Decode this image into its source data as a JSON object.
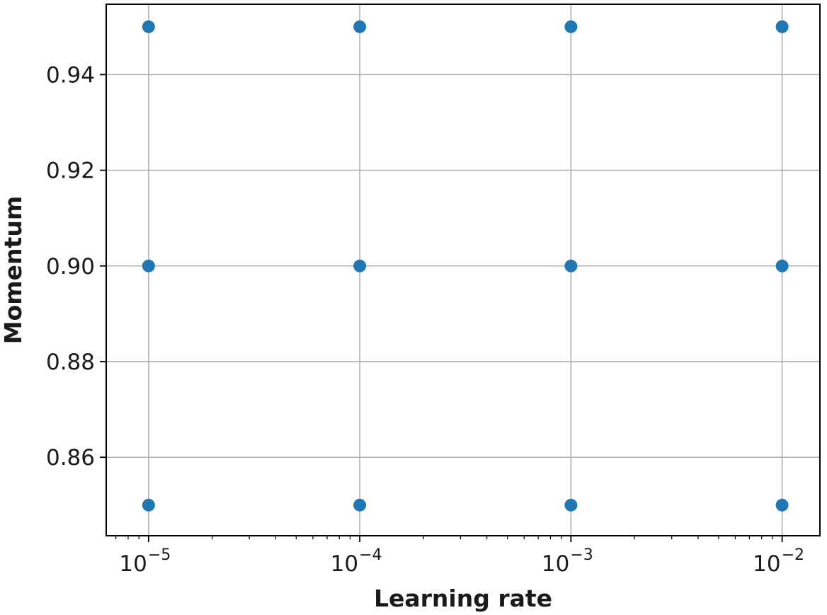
{
  "chart_data": {
    "type": "scatter",
    "xlabel": "Learning rate",
    "ylabel": "Momentum",
    "xscale": "log",
    "xlim": [
      6.3e-06,
      0.0151
    ],
    "ylim": [
      0.8436,
      0.9547
    ],
    "grid": true,
    "x_ticks": [
      {
        "value": 1e-05,
        "base": "10",
        "exp": "−5"
      },
      {
        "value": 0.0001,
        "base": "10",
        "exp": "−4"
      },
      {
        "value": 0.001,
        "base": "10",
        "exp": "−3"
      },
      {
        "value": 0.01,
        "base": "10",
        "exp": "−2"
      }
    ],
    "y_ticks": [
      {
        "value": 0.86,
        "label": "0.86"
      },
      {
        "value": 0.88,
        "label": "0.88"
      },
      {
        "value": 0.9,
        "label": "0.90"
      },
      {
        "value": 0.92,
        "label": "0.92"
      },
      {
        "value": 0.94,
        "label": "0.94"
      }
    ],
    "series": [
      {
        "color": "#1f77b4",
        "points": [
          {
            "x": 1e-05,
            "y": 0.95
          },
          {
            "x": 0.0001,
            "y": 0.95
          },
          {
            "x": 0.001,
            "y": 0.95
          },
          {
            "x": 0.01,
            "y": 0.95
          },
          {
            "x": 1e-05,
            "y": 0.9
          },
          {
            "x": 0.0001,
            "y": 0.9
          },
          {
            "x": 0.001,
            "y": 0.9
          },
          {
            "x": 0.01,
            "y": 0.9
          },
          {
            "x": 1e-05,
            "y": 0.85
          },
          {
            "x": 0.0001,
            "y": 0.85
          },
          {
            "x": 0.001,
            "y": 0.85
          },
          {
            "x": 0.01,
            "y": 0.85
          }
        ]
      }
    ]
  }
}
